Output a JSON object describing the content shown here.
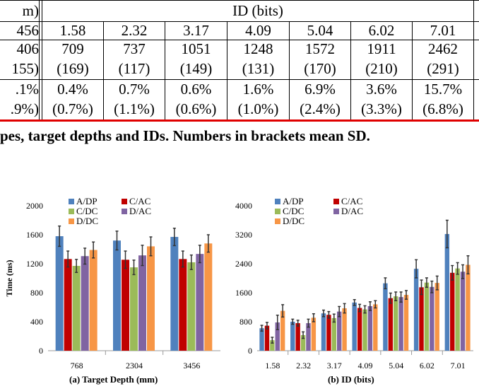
{
  "table": {
    "header_left": "m)",
    "header_id": "ID (bits)",
    "left_col": [
      {
        "top": "456"
      },
      {
        "top": "406",
        "bottom": "155)"
      },
      {
        "top": ".1%",
        "bottom": ".9%)"
      }
    ],
    "ids": [
      "1.58",
      "2.32",
      "3.17",
      "4.09",
      "5.04",
      "6.02",
      "7.01"
    ],
    "time_mean": [
      "709",
      "737",
      "1051",
      "1248",
      "1572",
      "1911",
      "2462"
    ],
    "time_sd": [
      "(169)",
      "(117)",
      "(149)",
      "(131)",
      "(170)",
      "(210)",
      "(291)"
    ],
    "err_mean": [
      "0.4%",
      "0.7%",
      "0.6%",
      "1.6%",
      "6.9%",
      "3.6%",
      "15.7%"
    ],
    "err_sd": [
      "(0.7%)",
      "(1.1%)",
      "(0.6%)",
      "(1.0%)",
      "(2.4%)",
      "(3.3%)",
      "(6.8%)"
    ]
  },
  "caption": "pes, target depths and IDs. Numbers in brackets mean SD.",
  "colors": {
    "A/DP": "#4f81bd",
    "C/AC": "#c00000",
    "C/DC": "#9bbb59",
    "D/AC": "#8064a2",
    "D/DC": "#f79646"
  },
  "chart_data": [
    {
      "type": "bar",
      "sublabel": "(a)  Target Depth (mm)",
      "ylabel": "Time (ms)",
      "ylim": [
        0,
        2000
      ],
      "yticks": [
        "0",
        "400",
        "800",
        "1200",
        "1600",
        "2000"
      ],
      "categories": [
        "768",
        "2304",
        "3456"
      ],
      "series": [
        {
          "name": "A/DP",
          "values": [
            1580,
            1520,
            1570
          ],
          "errors": [
            140,
            130,
            120
          ]
        },
        {
          "name": "C/AC",
          "values": [
            1265,
            1255,
            1265
          ],
          "errors": [
            110,
            120,
            110
          ]
        },
        {
          "name": "C/DC",
          "values": [
            1170,
            1150,
            1220
          ],
          "errors": [
            90,
            100,
            100
          ]
        },
        {
          "name": "D/AC",
          "values": [
            1305,
            1315,
            1335
          ],
          "errors": [
            110,
            140,
            120
          ]
        },
        {
          "name": "D/DC",
          "values": [
            1390,
            1440,
            1480
          ],
          "errors": [
            110,
            130,
            120
          ]
        }
      ]
    },
    {
      "type": "bar",
      "sublabel": "(b)  ID (bits)",
      "ylabel": "",
      "ylim": [
        0,
        4000
      ],
      "yticks": [
        "0",
        "800",
        "1600",
        "2400",
        "3200",
        "4000"
      ],
      "categories": [
        "1.58",
        "2.32",
        "3.17",
        "4.09",
        "5.04",
        "6.02",
        "7.01"
      ],
      "series": [
        {
          "name": "A/DP",
          "values": [
            620,
            800,
            1030,
            1330,
            1860,
            2260,
            3220
          ],
          "errors": [
            80,
            70,
            90,
            80,
            150,
            250,
            380
          ]
        },
        {
          "name": "C/AC",
          "values": [
            690,
            760,
            990,
            1180,
            1450,
            1750,
            2150
          ],
          "errors": [
            90,
            80,
            90,
            100,
            140,
            200,
            200
          ]
        },
        {
          "name": "C/DC",
          "values": [
            290,
            430,
            900,
            1140,
            1500,
            1880,
            2270
          ],
          "errors": [
            80,
            90,
            110,
            100,
            120,
            130,
            160
          ]
        },
        {
          "name": "D/AC",
          "values": [
            780,
            760,
            1080,
            1230,
            1480,
            1760,
            2180
          ],
          "errors": [
            200,
            110,
            140,
            120,
            140,
            160,
            190
          ]
        },
        {
          "name": "D/DC",
          "values": [
            1100,
            910,
            1170,
            1280,
            1540,
            1870,
            2370
          ],
          "errors": [
            170,
            110,
            130,
            100,
            120,
            190,
            250
          ]
        }
      ]
    }
  ]
}
